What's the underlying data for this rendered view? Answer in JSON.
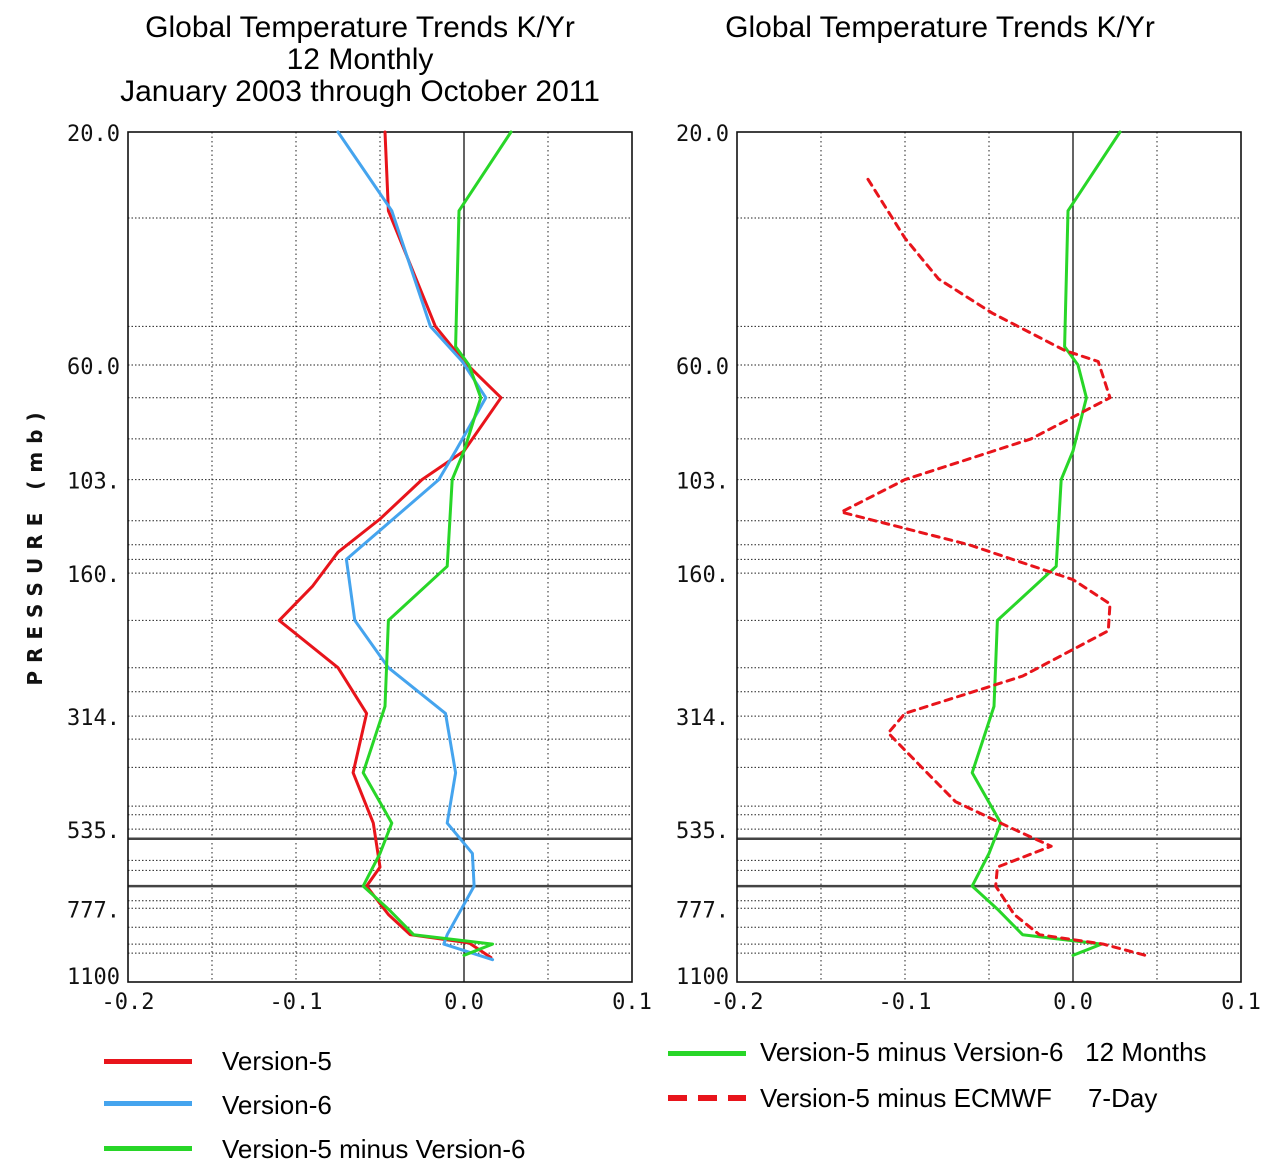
{
  "colors": {
    "red": "#e8141b",
    "blue": "#45a4ee",
    "green": "#28d628"
  },
  "titles": {
    "left": [
      "Global Temperature Trends K/Yr",
      "12 Monthly",
      "January 2003 through October 2011"
    ],
    "right": [
      "Global Temperature Trends K/Yr"
    ]
  },
  "legend": {
    "left": [
      {
        "label": "Version-5",
        "color": "red",
        "style": "solid"
      },
      {
        "label": "Version-6",
        "color": "blue",
        "style": "solid"
      },
      {
        "label": "Version-5 minus Version-6",
        "color": "green",
        "style": "solid"
      }
    ],
    "right": [
      {
        "label": "Version-5 minus Version-6   12 Months",
        "color": "green",
        "style": "solid"
      },
      {
        "label": "Version-5 minus ECMWF     7-Day",
        "color": "red",
        "style": "dashed"
      }
    ]
  },
  "chart_data": [
    {
      "type": "line",
      "title": "Global Temperature Trends K/Yr 12 Monthly January 2003 through October 2011",
      "ylabel": "PRESSURE (mb)",
      "xlim": [
        -0.2,
        0.1
      ],
      "ylim": [
        1100,
        20
      ],
      "y_scale": "log",
      "x_ticks": [
        "-0.2",
        "-0.1",
        "0.0",
        "0.1"
      ],
      "y_ticks": [
        "20.0",
        "60.0",
        "103.",
        "160.",
        "314.",
        "535.",
        "777.",
        "1100"
      ],
      "grid": true,
      "series": [
        {
          "name": "Version-5",
          "color": "red",
          "style": "solid",
          "points": [
            [
              -0.047,
              20
            ],
            [
              -0.045,
              29
            ],
            [
              -0.017,
              50
            ],
            [
              0.0,
              59
            ],
            [
              0.022,
              70
            ],
            [
              0.0,
              90
            ],
            [
              -0.025,
              103
            ],
            [
              -0.05,
              124
            ],
            [
              -0.075,
              145
            ],
            [
              -0.09,
              170
            ],
            [
              -0.11,
              200
            ],
            [
              -0.075,
              250
            ],
            [
              -0.058,
              310
            ],
            [
              -0.066,
              410
            ],
            [
              -0.054,
              520
            ],
            [
              -0.05,
              640
            ],
            [
              -0.058,
              700
            ],
            [
              -0.045,
              800
            ],
            [
              -0.032,
              880
            ],
            [
              0.003,
              915
            ],
            [
              0.016,
              980
            ]
          ]
        },
        {
          "name": "Version-6",
          "color": "blue",
          "style": "solid",
          "points": [
            [
              -0.075,
              20
            ],
            [
              -0.043,
              29
            ],
            [
              -0.02,
              50
            ],
            [
              -0.001,
              59
            ],
            [
              0.013,
              70
            ],
            [
              -0.005,
              90
            ],
            [
              -0.015,
              103
            ],
            [
              -0.07,
              150
            ],
            [
              -0.065,
              200
            ],
            [
              -0.045,
              250
            ],
            [
              -0.011,
              310
            ],
            [
              -0.005,
              410
            ],
            [
              -0.01,
              520
            ],
            [
              0.005,
              600
            ],
            [
              0.006,
              700
            ],
            [
              -0.01,
              880
            ],
            [
              -0.012,
              920
            ],
            [
              0.017,
              990
            ]
          ]
        },
        {
          "name": "Version-5 minus Version-6",
          "color": "green",
          "style": "solid",
          "points": [
            [
              0.028,
              20
            ],
            [
              -0.003,
              29
            ],
            [
              -0.005,
              55
            ],
            [
              0.003,
              60
            ],
            [
              0.01,
              70
            ],
            [
              0.0,
              90
            ],
            [
              -0.007,
              103
            ],
            [
              -0.01,
              155
            ],
            [
              -0.045,
              200
            ],
            [
              -0.047,
              300
            ],
            [
              -0.06,
              410
            ],
            [
              -0.043,
              520
            ],
            [
              -0.05,
              600
            ],
            [
              -0.06,
              700
            ],
            [
              -0.045,
              780
            ],
            [
              -0.03,
              880
            ],
            [
              0.017,
              920
            ],
            [
              0.0,
              970
            ]
          ]
        }
      ]
    },
    {
      "type": "line",
      "title": "Global Temperature Trends K/Yr",
      "xlim": [
        -0.2,
        0.1
      ],
      "ylim": [
        1100,
        20
      ],
      "y_scale": "log",
      "x_ticks": [
        "-0.2",
        "-0.1",
        "0.0",
        "0.1"
      ],
      "y_ticks": [
        "20.0",
        "60.0",
        "103.",
        "160.",
        "314.",
        "535.",
        "777.",
        "1100"
      ],
      "grid": true,
      "series": [
        {
          "name": "Version-5 minus Version-6   12 Months",
          "color": "green",
          "style": "solid",
          "points": [
            [
              0.028,
              20
            ],
            [
              -0.003,
              29
            ],
            [
              -0.005,
              55
            ],
            [
              0.003,
              60
            ],
            [
              0.008,
              70
            ],
            [
              0.0,
              90
            ],
            [
              -0.007,
              103
            ],
            [
              -0.01,
              155
            ],
            [
              -0.045,
              200
            ],
            [
              -0.047,
              300
            ],
            [
              -0.06,
              410
            ],
            [
              -0.043,
              520
            ],
            [
              -0.05,
              600
            ],
            [
              -0.06,
              700
            ],
            [
              -0.045,
              780
            ],
            [
              -0.03,
              880
            ],
            [
              0.017,
              920
            ],
            [
              0.0,
              970
            ]
          ]
        },
        {
          "name": "Version-5 minus ECMWF     7-Day",
          "color": "red",
          "style": "dashed",
          "points": [
            [
              -0.122,
              25
            ],
            [
              -0.1,
              33
            ],
            [
              -0.08,
              40
            ],
            [
              -0.048,
              47
            ],
            [
              -0.005,
              56
            ],
            [
              0.015,
              59
            ],
            [
              0.022,
              70
            ],
            [
              -0.025,
              85
            ],
            [
              -0.1,
              103
            ],
            [
              -0.138,
              120
            ],
            [
              -0.062,
              140
            ],
            [
              0.0,
              165
            ],
            [
              0.022,
              185
            ],
            [
              0.021,
              210
            ],
            [
              -0.03,
              260
            ],
            [
              -0.1,
              310
            ],
            [
              -0.11,
              340
            ],
            [
              -0.09,
              400
            ],
            [
              -0.07,
              470
            ],
            [
              -0.038,
              530
            ],
            [
              -0.013,
              580
            ],
            [
              -0.045,
              640
            ],
            [
              -0.046,
              700
            ],
            [
              -0.035,
              800
            ],
            [
              -0.02,
              880
            ],
            [
              0.018,
              920
            ],
            [
              0.043,
              970
            ]
          ]
        }
      ]
    }
  ]
}
